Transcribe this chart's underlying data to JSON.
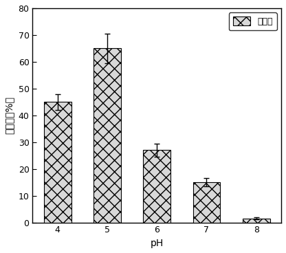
{
  "categories": [
    "4",
    "5",
    "6",
    "7",
    "8"
  ],
  "values": [
    45.0,
    65.0,
    27.0,
    15.0,
    1.5
  ],
  "errors": [
    3.0,
    5.5,
    2.5,
    1.5,
    0.4
  ],
  "xlabel": "pH",
  "ylabel": "去除率（%）",
  "ylim": [
    0,
    80
  ],
  "yticks": [
    0,
    10,
    20,
    30,
    40,
    50,
    60,
    70,
    80
  ],
  "legend_label": "去除率",
  "bar_facecolor": "#d8d8d8",
  "bar_edgecolor": "#000000",
  "hatch": "xx",
  "bar_width": 0.55,
  "background_color": "#ffffff",
  "axis_fontsize": 10,
  "tick_fontsize": 9,
  "legend_fontsize": 9
}
